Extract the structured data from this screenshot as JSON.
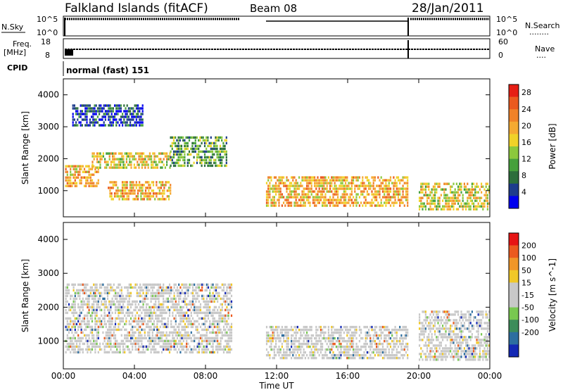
{
  "header": {
    "station": "Falkland Islands (fitACF)",
    "beam": "Beam 08",
    "date": "28/Jan/2011"
  },
  "labels": {
    "nsky": "N.Sky",
    "freq_line1": "Freq.",
    "freq_line2": "[MHz]",
    "cpid": "CPID",
    "nsearch": "N.Search",
    "nsearch_dots": "........",
    "nave": "Nave",
    "nave_dots": "....",
    "cpid_value": "normal (fast) 151",
    "nsky_ticks": [
      "10^5",
      "10^0"
    ],
    "nsearch_ticks": [
      "10^5",
      "10^0"
    ],
    "freq_ticks": [
      "18",
      "8"
    ],
    "nave_ticks": [
      "60",
      "0"
    ]
  },
  "chart_data": [
    {
      "type": "heatmap",
      "title": "",
      "xlabel": "Time UT",
      "ylabel": "Slant Range [km]",
      "xlim": [
        0,
        24
      ],
      "ylim": [
        180,
        4500
      ],
      "x_ticks": [
        "00:00",
        "04:00",
        "08:00",
        "12:00",
        "16:00",
        "20:00",
        "00:00"
      ],
      "y_ticks": [
        1000,
        2000,
        3000,
        4000
      ],
      "colorbar_label": "Power [dB]",
      "colorbar_ticks": [
        "4",
        "8",
        "12",
        "16",
        "20",
        "24",
        "28"
      ],
      "colorbar_colors": [
        "#0000ee",
        "#1e3c8c",
        "#2d6e3c",
        "#46a03c",
        "#8cc83c",
        "#f0d228",
        "#f5aa32",
        "#f08228",
        "#eb5a1e",
        "#e61e14"
      ],
      "echo_regions": [
        {
          "t_start": 0.1,
          "t_end": 2.0,
          "r_start": 1150,
          "r_end": 1800,
          "value": 22
        },
        {
          "t_start": 1.6,
          "t_end": 6.0,
          "r_start": 1700,
          "r_end": 2200,
          "value": 18
        },
        {
          "t_start": 2.5,
          "t_end": 6.0,
          "r_start": 700,
          "r_end": 1300,
          "value": 22
        },
        {
          "t_start": 6.0,
          "t_end": 9.2,
          "r_start": 1800,
          "r_end": 2700,
          "value": 12
        },
        {
          "t_start": 11.4,
          "t_end": 19.4,
          "r_start": 500,
          "r_end": 1450,
          "value": 24
        },
        {
          "t_start": 20.0,
          "t_end": 24.0,
          "r_start": 450,
          "r_end": 1250,
          "value": 20
        },
        {
          "t_start": 0.5,
          "t_end": 4.5,
          "r_start": 3000,
          "r_end": 3700,
          "value": 8
        }
      ]
    },
    {
      "type": "heatmap",
      "title": "",
      "xlabel": "Time UT",
      "ylabel": "Slant Range [km]",
      "xlim": [
        0,
        24
      ],
      "ylim": [
        180,
        4500
      ],
      "x_ticks": [
        "00:00",
        "04:00",
        "08:00",
        "12:00",
        "16:00",
        "20:00",
        "00:00"
      ],
      "y_ticks": [
        1000,
        2000,
        3000,
        4000
      ],
      "colorbar_label": "Velocity [m s^-1]",
      "colorbar_ticks": [
        "200",
        "100",
        "50",
        "15",
        "-15",
        "-50",
        "-100",
        "-200"
      ],
      "colorbar_colors": [
        "#1428b4",
        "#2d6ea0",
        "#3c8c5a",
        "#78c850",
        "#c8c8c8",
        "#c8c8c8",
        "#f0c828",
        "#f09628",
        "#eb5a1e",
        "#e61414"
      ],
      "echo_regions": [
        {
          "t_start": 0.1,
          "t_end": 9.5,
          "r_start": 700,
          "r_end": 2700,
          "value": 0
        },
        {
          "t_start": 11.4,
          "t_end": 19.4,
          "r_start": 500,
          "r_end": 1450,
          "value": 0
        },
        {
          "t_start": 20.0,
          "t_end": 24.0,
          "r_start": 450,
          "r_end": 1900,
          "value": 0
        }
      ]
    }
  ]
}
